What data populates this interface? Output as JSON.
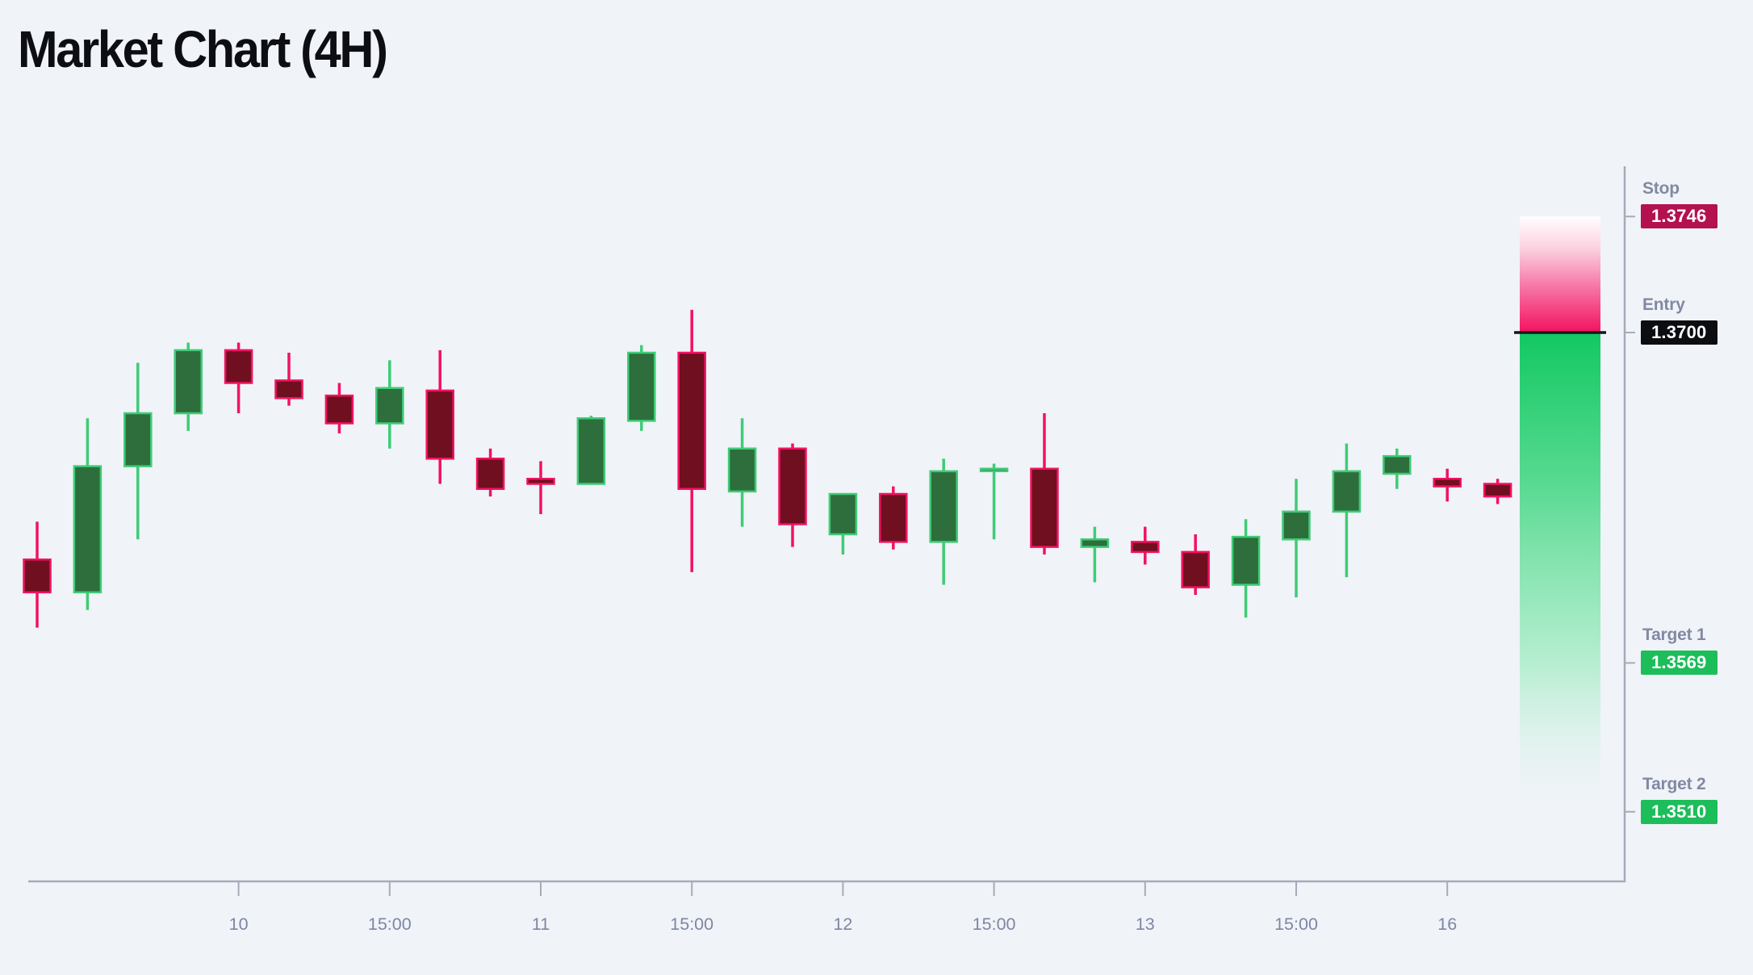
{
  "page": {
    "title": "Market Chart (4H)"
  },
  "chart_data": {
    "type": "candlestick",
    "title": "Market Chart (4H)",
    "timeframe": "4H",
    "grid": false,
    "x_axis": {
      "tick_labels": [
        "10",
        "15:00",
        "11",
        "15:00",
        "12",
        "15:00",
        "13",
        "15:00",
        "16"
      ],
      "tick_candle_indexes": [
        4,
        7,
        10,
        13,
        16,
        19,
        22,
        25,
        28
      ]
    },
    "y_axis": {
      "side": "right",
      "marked_prices": [
        1.3746,
        1.37,
        1.3569,
        1.351
      ]
    },
    "candles": [
      {
        "o": 1.361,
        "h": 1.3625,
        "l": 1.3583,
        "c": 1.3597
      },
      {
        "o": 1.3597,
        "h": 1.3666,
        "l": 1.359,
        "c": 1.3647
      },
      {
        "o": 1.3647,
        "h": 1.3688,
        "l": 1.3618,
        "c": 1.3668
      },
      {
        "o": 1.3668,
        "h": 1.3696,
        "l": 1.3661,
        "c": 1.3693
      },
      {
        "o": 1.3693,
        "h": 1.3696,
        "l": 1.3668,
        "c": 1.368
      },
      {
        "o": 1.3681,
        "h": 1.3692,
        "l": 1.3671,
        "c": 1.3674
      },
      {
        "o": 1.3675,
        "h": 1.368,
        "l": 1.366,
        "c": 1.3664
      },
      {
        "o": 1.3664,
        "h": 1.3689,
        "l": 1.3654,
        "c": 1.3678
      },
      {
        "o": 1.3677,
        "h": 1.3693,
        "l": 1.364,
        "c": 1.365
      },
      {
        "o": 1.365,
        "h": 1.3654,
        "l": 1.3635,
        "c": 1.3638
      },
      {
        "o": 1.3642,
        "h": 1.3649,
        "l": 1.3628,
        "c": 1.364
      },
      {
        "o": 1.364,
        "h": 1.3667,
        "l": 1.364,
        "c": 1.3666
      },
      {
        "o": 1.3665,
        "h": 1.3695,
        "l": 1.3661,
        "c": 1.3692
      },
      {
        "o": 1.3692,
        "h": 1.3709,
        "l": 1.3605,
        "c": 1.3638
      },
      {
        "o": 1.3637,
        "h": 1.3666,
        "l": 1.3623,
        "c": 1.3654
      },
      {
        "o": 1.3654,
        "h": 1.3656,
        "l": 1.3615,
        "c": 1.3624
      },
      {
        "o": 1.362,
        "h": 1.3636,
        "l": 1.3612,
        "c": 1.3636
      },
      {
        "o": 1.3636,
        "h": 1.3639,
        "l": 1.3614,
        "c": 1.3617
      },
      {
        "o": 1.3617,
        "h": 1.365,
        "l": 1.36,
        "c": 1.3645
      },
      {
        "o": 1.3646,
        "h": 1.3648,
        "l": 1.3618,
        "c": 1.3646
      },
      {
        "o": 1.3646,
        "h": 1.3668,
        "l": 1.3612,
        "c": 1.3615
      },
      {
        "o": 1.3615,
        "h": 1.3623,
        "l": 1.3601,
        "c": 1.3618
      },
      {
        "o": 1.3617,
        "h": 1.3623,
        "l": 1.3608,
        "c": 1.3613
      },
      {
        "o": 1.3613,
        "h": 1.362,
        "l": 1.3596,
        "c": 1.3599
      },
      {
        "o": 1.36,
        "h": 1.3626,
        "l": 1.3587,
        "c": 1.3619
      },
      {
        "o": 1.3618,
        "h": 1.3642,
        "l": 1.3595,
        "c": 1.3629
      },
      {
        "o": 1.3629,
        "h": 1.3656,
        "l": 1.3603,
        "c": 1.3645
      },
      {
        "o": 1.3644,
        "h": 1.3654,
        "l": 1.3638,
        "c": 1.3651
      },
      {
        "o": 1.3642,
        "h": 1.3646,
        "l": 1.3633,
        "c": 1.3639
      },
      {
        "o": 1.364,
        "h": 1.3642,
        "l": 1.3632,
        "c": 1.3635
      }
    ],
    "levels": [
      {
        "id": "stop",
        "label": "Stop",
        "value": "1.3746",
        "price": 1.3746,
        "badge_color": "#b31150"
      },
      {
        "id": "entry",
        "label": "Entry",
        "value": "1.3700",
        "price": 1.37,
        "badge_color": "#0c0d10"
      },
      {
        "id": "target1",
        "label": "Target 1",
        "value": "1.3569",
        "price": 1.3569,
        "badge_color": "#1dbd5a"
      },
      {
        "id": "target2",
        "label": "Target 2",
        "value": "1.3510",
        "price": 1.351,
        "badge_color": "#1dbd5a"
      }
    ],
    "zones": [
      {
        "id": "risk-zone",
        "from_level": "stop",
        "to_level": "entry",
        "color": "#f31260",
        "fade": "top"
      },
      {
        "id": "profit-zone",
        "from_level": "entry",
        "to_level": "target2",
        "color": "#12c862",
        "fade": "bottom"
      }
    ],
    "colors": {
      "background": "#f0f3f8",
      "bull_fill": "#2d6e3c",
      "bull_stroke": "#3ecc76",
      "bear_fill": "#700f1f",
      "bear_stroke": "#f31260",
      "entry_line": "#15161c",
      "axis": "#a6abb7",
      "tick_label": "#7e86a3"
    }
  }
}
